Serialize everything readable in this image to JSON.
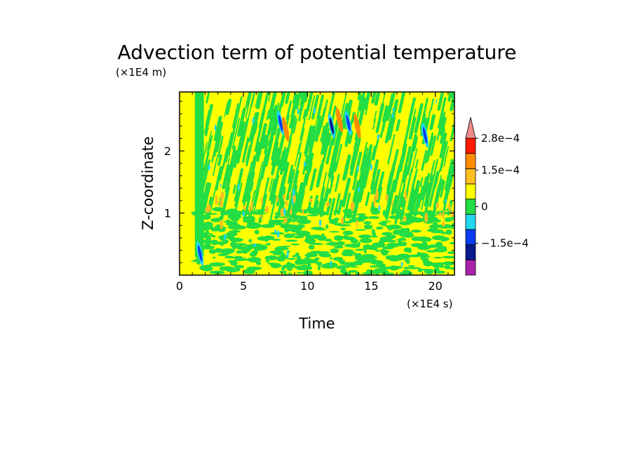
{
  "chart_data": {
    "type": "heatmap",
    "title": "Advection term of potential temperature",
    "xlabel": "Time",
    "ylabel": "Z-coordinate",
    "x_unit": "(×1E4 s)",
    "y_unit": "(×1E4 m)",
    "xlim": [
      0,
      21.5
    ],
    "ylim": [
      0,
      2.95
    ],
    "x_ticks": [
      0,
      5,
      10,
      15,
      20
    ],
    "x_tick_labels": [
      "0",
      "5",
      "10",
      "15",
      "20"
    ],
    "y_ticks": [
      1,
      2
    ],
    "y_tick_labels": [
      "1",
      "2"
    ],
    "colorbar": {
      "levels": [
        -0.00028,
        -0.00021,
        -0.00014,
        -7e-05,
        0,
        7e-05,
        0.00014,
        0.00021,
        0.00028
      ],
      "colors": [
        "#aa22aa",
        "#0a1a8c",
        "#0a3cf0",
        "#22d8f0",
        "#22dd44",
        "#ffff00",
        "#ffc020",
        "#ff8c00",
        "#ff1a00",
        "#f08a8a"
      ],
      "tick_values": [
        0.00028,
        0.00015,
        0,
        -0.00015
      ],
      "tick_labels": [
        "2.8e−4",
        "1.5e−4",
        "0",
        "−1.5e−4"
      ],
      "extend": "max"
    },
    "field_description_regions": [
      {
        "x_range": [
          0.3,
          1.2
        ],
        "z_range": [
          0.3,
          2.95
        ],
        "value": 0
      },
      {
        "x_range": [
          1.2,
          1.9
        ],
        "z_range": [
          0.3,
          2.95
        ],
        "value": -3e-05
      }
    ],
    "features": [
      {
        "x": 7.9,
        "z": 2.45,
        "value": -0.0002
      },
      {
        "x": 8.3,
        "z": 2.35,
        "value": 0.0002
      },
      {
        "x": 11.9,
        "z": 2.4,
        "value": -0.00022
      },
      {
        "x": 12.5,
        "z": 2.5,
        "value": 0.00021
      },
      {
        "x": 13.2,
        "z": 2.45,
        "value": -0.00018
      },
      {
        "x": 13.9,
        "z": 2.4,
        "value": 0.00016
      },
      {
        "x": 19.2,
        "z": 2.25,
        "value": -0.00014
      },
      {
        "x": 1.6,
        "z": 0.35,
        "value": -0.00015
      }
    ]
  }
}
